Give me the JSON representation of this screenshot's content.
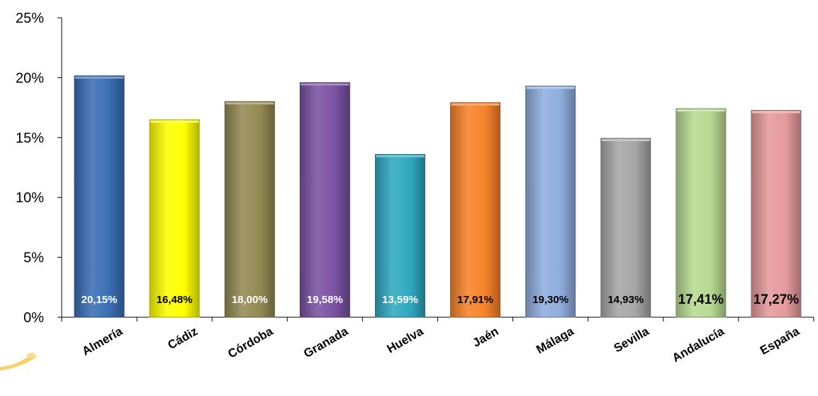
{
  "chart_data": {
    "type": "bar",
    "title": "",
    "xlabel": "",
    "ylabel": "",
    "ylim": [
      0,
      25
    ],
    "y_ticks": [
      "0%",
      "5%",
      "10%",
      "15%",
      "20%",
      "25%"
    ],
    "categories": [
      "Almería",
      "Cádiz",
      "Córdoba",
      "Granada",
      "Huelva",
      "Jaén",
      "Málaga",
      "Sevilla",
      "Andalucía",
      "España"
    ],
    "values": [
      20.15,
      16.48,
      18.0,
      19.58,
      13.59,
      17.91,
      19.3,
      14.93,
      17.41,
      17.27
    ],
    "data_labels": [
      "20,15%",
      "16,48%",
      "18,00%",
      "19,58%",
      "13,59%",
      "17,91%",
      "19,30%",
      "14,93%",
      "17,41%",
      "17,27%"
    ],
    "bar_colors": [
      "#3A6FB5",
      "#FFFF00",
      "#948A54",
      "#7B52A3",
      "#2FA9C0",
      "#F7832A",
      "#8FADDD",
      "#A6A6A6",
      "#B8D992",
      "#E59A9C"
    ],
    "label_colors": [
      "#ffffff",
      "#000000",
      "#ffffff",
      "#ffffff",
      "#ffffff",
      "#000000",
      "#000000",
      "#000000",
      "#000000",
      "#000000"
    ],
    "label_emphasis": [
      "normal",
      "normal",
      "normal",
      "normal",
      "normal",
      "normal",
      "normal",
      "normal",
      "large",
      "large"
    ],
    "grid": false,
    "legend": "none"
  }
}
